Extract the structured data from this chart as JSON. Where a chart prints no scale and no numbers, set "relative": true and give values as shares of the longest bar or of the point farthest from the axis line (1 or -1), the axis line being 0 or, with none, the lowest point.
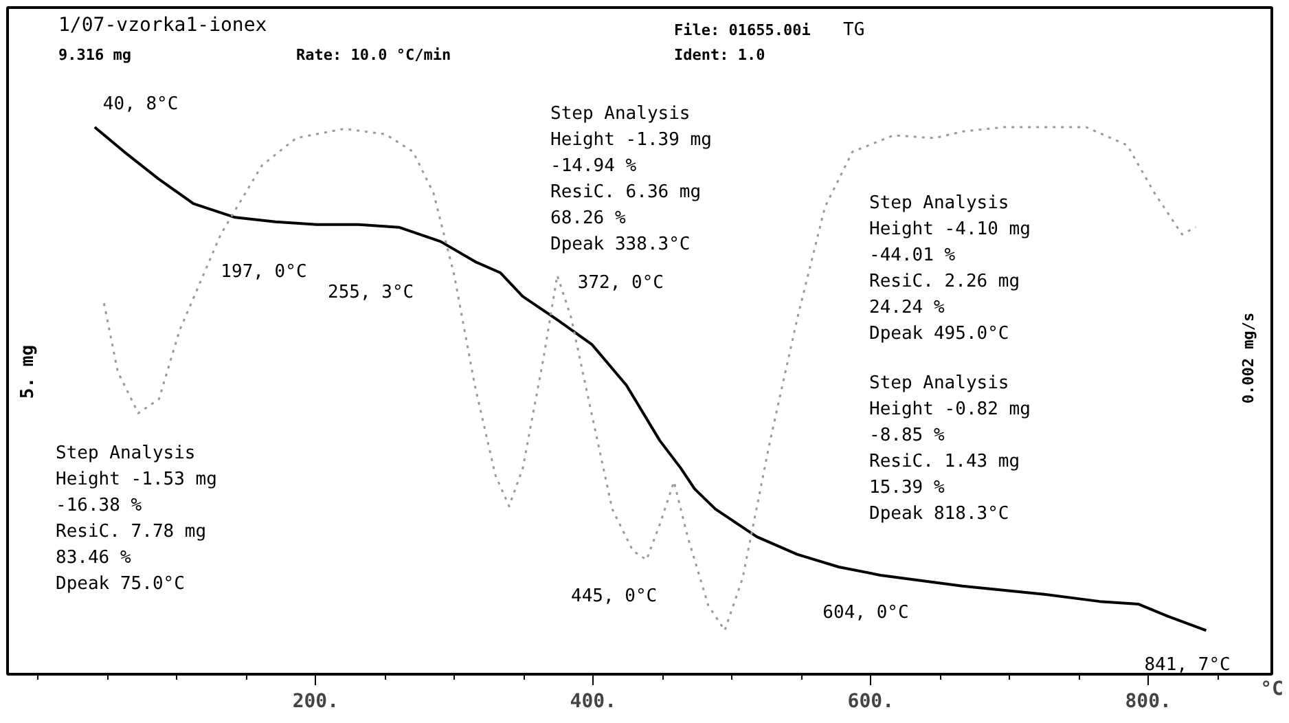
{
  "chart_data": {
    "type": "line",
    "title": "1/07-vzorka1-ionex",
    "subtitle": "9.316 mg",
    "xlabel": "°C",
    "relative": true,
    "grid": false,
    "tick_labels": "x",
    "xlim": [
      -22,
      889
    ],
    "xticks": [
      {
        "value": 200,
        "label": "200."
      },
      {
        "value": 400,
        "label": "400."
      },
      {
        "value": 600,
        "label": "600."
      },
      {
        "value": 800,
        "label": "800."
      }
    ],
    "series": [
      {
        "color": "#000000",
        "line_style": "solid",
        "x": [
          40.8,
          62,
          87,
          112,
          142,
          171,
          201,
          231,
          260,
          290,
          315,
          333,
          349,
          374,
          399,
          424,
          448,
          463,
          473,
          488,
          518,
          547,
          577,
          607,
          666,
          725,
          765,
          793,
          814,
          841.7
        ],
        "values": [
          1.0,
          0.955,
          0.905,
          0.86,
          0.835,
          0.827,
          0.822,
          0.822,
          0.817,
          0.791,
          0.754,
          0.734,
          0.691,
          0.648,
          0.603,
          0.528,
          0.427,
          0.377,
          0.339,
          0.302,
          0.251,
          0.219,
          0.196,
          0.181,
          0.161,
          0.146,
          0.133,
          0.128,
          0.106,
          0.08
        ]
      },
      {
        "color": "#999999",
        "line_style": "dotted",
        "x": [
          47.5,
          57.4,
          72.2,
          87.1,
          101.9,
          131.6,
          161.3,
          186.0,
          220.7,
          250.4,
          270.2,
          285.0,
          299.9,
          314.7,
          329.5,
          339.4,
          349.3,
          364.2,
          374.1,
          384.0,
          398.8,
          413.7,
          428.5,
          438.4,
          448.3,
          458.2,
          468.1,
          482.9,
          494.8,
          507.7,
          527.5,
          547.3,
          567.0,
          586.8,
          616.5,
          646.2,
          666.0,
          695.7,
          725.4,
          755.1,
          784.8,
          804.6,
          824.3,
          834.2
        ],
        "values": [
          0.678,
          0.553,
          0.477,
          0.503,
          0.628,
          0.804,
          0.93,
          0.98,
          0.997,
          0.987,
          0.955,
          0.879,
          0.729,
          0.528,
          0.364,
          0.307,
          0.377,
          0.578,
          0.729,
          0.653,
          0.477,
          0.302,
          0.226,
          0.209,
          0.276,
          0.352,
          0.251,
          0.126,
          0.08,
          0.176,
          0.427,
          0.653,
          0.854,
          0.955,
          0.985,
          0.98,
          0.992,
          1.0,
          1.0,
          1.0,
          0.967,
          0.879,
          0.804,
          0.817
        ]
      }
    ],
    "annotations": [
      "Rate: 10.0 °C/min",
      "File: 01655.00i",
      "TG",
      "Ident: 1.0",
      "Step Analysis\nHeight -1.53 mg\n       -16.38 %\nResiC.  7.78 mg\n        83.46 %\nDpeak   75.0°C",
      "Step Analysis\nHeight -1.39 mg\n       -14.94 %\nResiC.  6.36 mg\n        68.26 %\nDpeak  338.3°C",
      "Step Analysis\nHeight -4.10 mg\n       -44.01 %\nResiC.  2.26 mg\n        24.24 %\nDpeak  495.0°C",
      "Step Analysis\nHeight -0.82 mg\n        -8.85 %\nResiC.  1.43 mg\n        15.39 %\nDpeak  818.3°C",
      "5. mg",
      "0.002 mg/s",
      {
        "text": "40, 8°C",
        "x": 40.8,
        "y": 1.0
      },
      {
        "text": "197, 0°C",
        "x": 197.0,
        "y": 0.822
      },
      {
        "text": "372, 0°C",
        "x": 372.0,
        "y": 0.729
      },
      "445, 0°C",
      "255, 3°C",
      {
        "text": "604, 0°C",
        "x": 604.0,
        "y": 0.196
      },
      {
        "text": "841, 7°C",
        "x": 841.7,
        "y": 0.08
      }
    ]
  }
}
